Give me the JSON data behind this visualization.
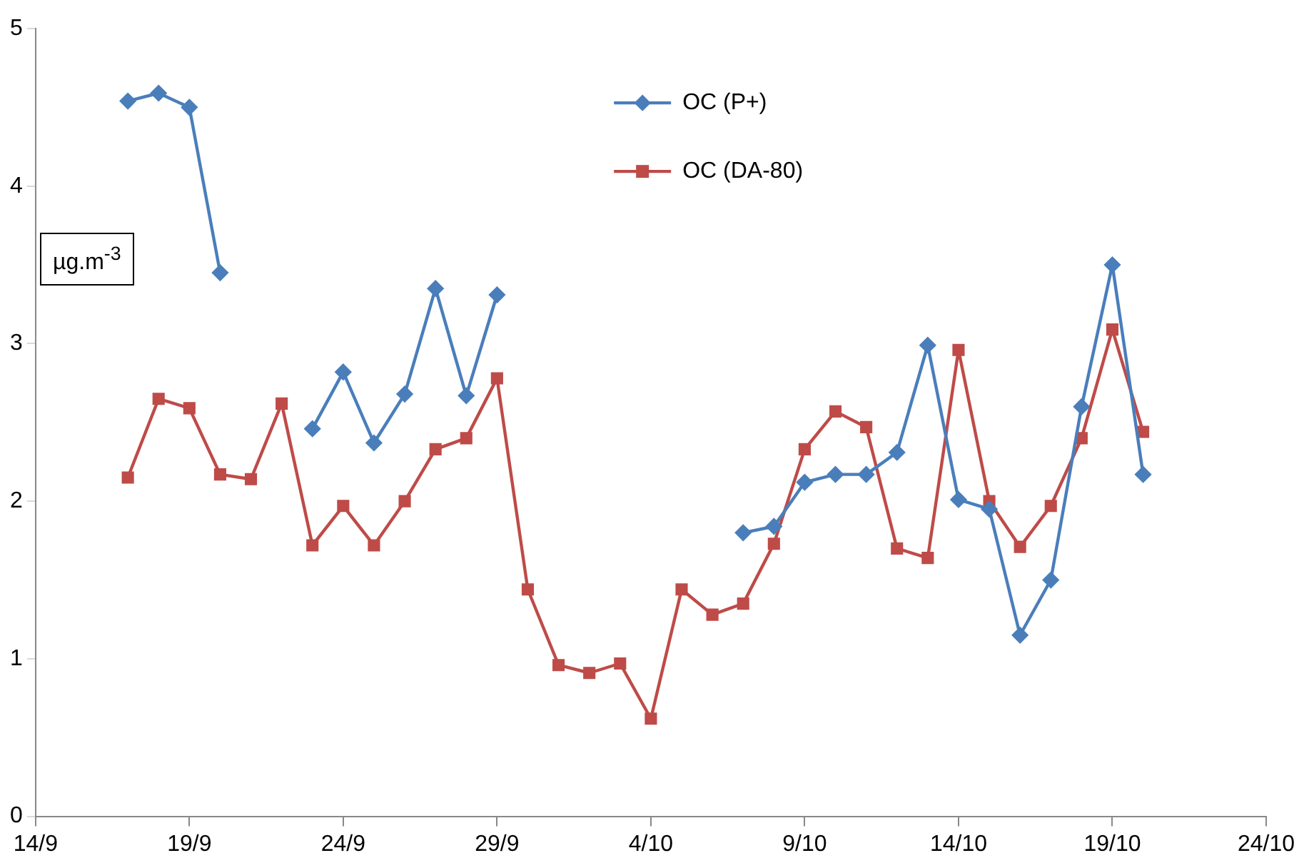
{
  "chart_data": {
    "type": "line",
    "ylabel": "µg.m$^{-3}$",
    "x": [
      "--09-17",
      "--09-18",
      "--09-19",
      "--09-20",
      "--09-21",
      "--09-22",
      "--09-23",
      "--09-24",
      "--09-25",
      "--09-26",
      "--09-27",
      "--09-28",
      "--09-29",
      "--09-30",
      "--10-01",
      "--10-02",
      "--10-03",
      "--10-04",
      "--10-05",
      "--10-06",
      "--10-07",
      "--10-08",
      "--10-09",
      "--10-10",
      "--10-11",
      "--10-12",
      "--10-13",
      "--10-14",
      "--10-15",
      "--10-16",
      "--10-17",
      "--10-18",
      "--10-19",
      "--10-20"
    ],
    "series": [
      {
        "name": "OC (P+)",
        "color": "#4a7ebb",
        "marker": "diamond",
        "values": [
          4.54,
          4.59,
          4.5,
          3.45,
          null,
          null,
          2.46,
          2.82,
          2.37,
          2.68,
          3.35,
          2.67,
          3.31,
          null,
          null,
          null,
          null,
          null,
          null,
          null,
          1.8,
          1.84,
          2.12,
          2.17,
          2.17,
          2.31,
          2.99,
          2.01,
          1.95,
          1.15,
          1.5,
          2.6,
          3.5,
          2.17
        ]
      },
      {
        "name": "OC (DA-80)",
        "color": "#be4b48",
        "marker": "square",
        "values": [
          2.15,
          2.65,
          2.59,
          2.17,
          2.14,
          2.62,
          1.72,
          1.97,
          1.72,
          2.0,
          2.33,
          2.4,
          2.78,
          1.44,
          0.96,
          0.91,
          0.97,
          0.62,
          1.44,
          1.28,
          1.35,
          1.73,
          2.33,
          2.57,
          2.47,
          1.7,
          1.64,
          2.96,
          2.0,
          1.71,
          1.97,
          2.4,
          3.09,
          2.44
        ]
      }
    ],
    "xlim": [
      "--09-14",
      "--10-24"
    ],
    "xticks": [
      {
        "value": "--09-14",
        "label": "14/9"
      },
      {
        "value": "--09-19",
        "label": "19/9"
      },
      {
        "value": "--09-24",
        "label": "24/9"
      },
      {
        "value": "--09-29",
        "label": "29/9"
      },
      {
        "value": "--10-04",
        "label": "4/10"
      },
      {
        "value": "--10-09",
        "label": "9/10"
      },
      {
        "value": "--10-14",
        "label": "14/10"
      },
      {
        "value": "--10-19",
        "label": "19/10"
      },
      {
        "value": "--10-24",
        "label": "24/10"
      }
    ],
    "ylim": [
      0,
      5
    ],
    "yticks": [
      0,
      1,
      2,
      3,
      4,
      5
    ],
    "grid": false,
    "legend": "top"
  }
}
